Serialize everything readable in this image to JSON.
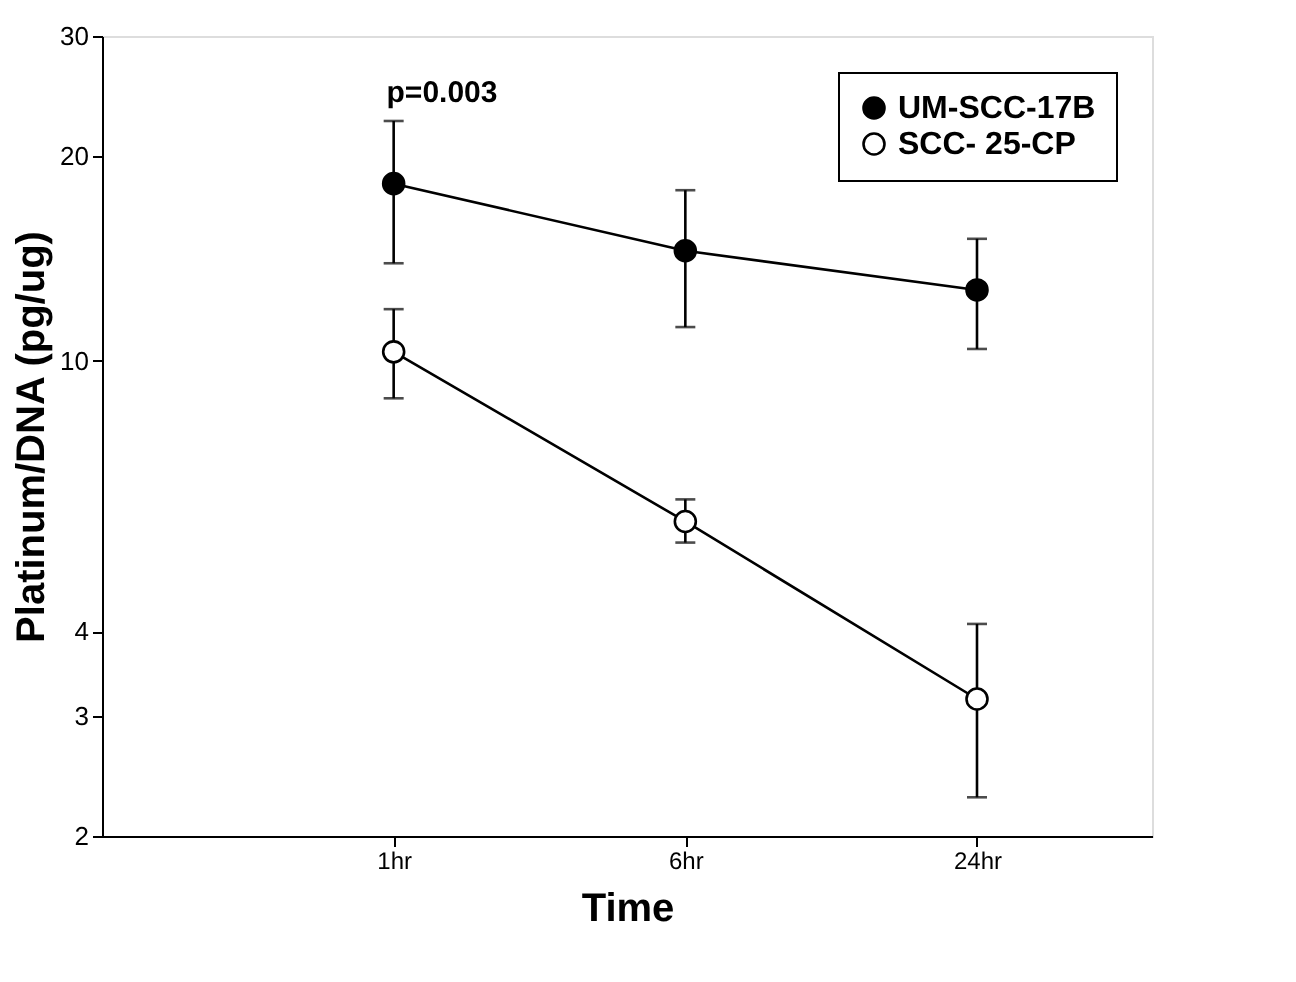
{
  "chart_data": {
    "type": "line",
    "xlabel": "Time",
    "ylabel": "Platinum/DNA (pg/ug)",
    "categories": [
      "1hr",
      "6hr",
      "24hr"
    ],
    "series": [
      {
        "name": "UM-SCC-17B",
        "color": "#000000",
        "values": [
          18.2,
          14.5,
          12.7
        ],
        "errors": [
          [
            13.9,
            22.5
          ],
          [
            11.2,
            17.8
          ],
          [
            10.4,
            15.1
          ]
        ]
      },
      {
        "name": "SCC- 25-CP",
        "color": "#ffffff",
        "values": [
          10.3,
          5.8,
          3.18
        ],
        "errors": [
          [
            8.8,
            11.9
          ],
          [
            5.4,
            6.25
          ],
          [
            2.28,
            4.1
          ]
        ]
      }
    ],
    "log": "y",
    "ylim": [
      2,
      30
    ],
    "yticks": [
      2,
      3,
      4,
      10,
      20,
      30
    ],
    "annotations": [
      "p=0.003"
    ],
    "marker": "circle",
    "line_style": "solid",
    "legend": "top right",
    "grid": false
  }
}
